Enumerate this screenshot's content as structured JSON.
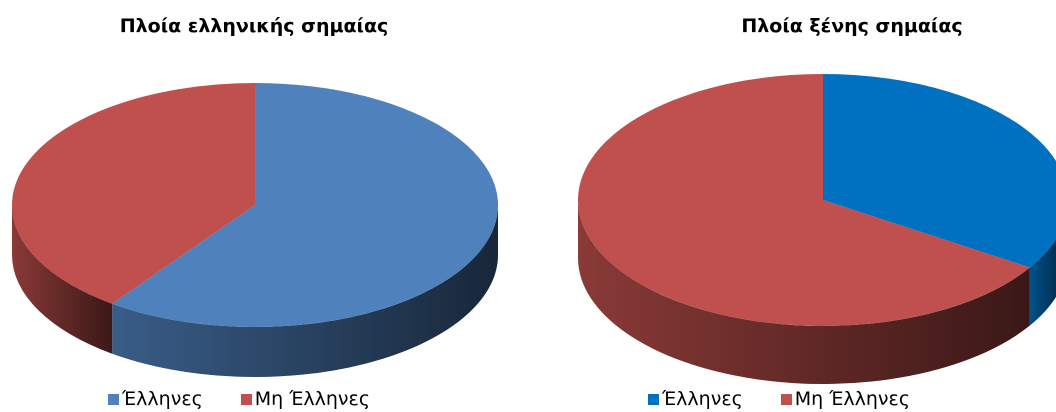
{
  "chart_data": [
    {
      "type": "pie",
      "title": "Πλοία ελληνικής σημαίας",
      "slices": [
        {
          "label": "Έλληνες",
          "value": 60,
          "color": "#4F81BD"
        },
        {
          "label": "Μη Έλληνες",
          "value": 40,
          "color": "#C0504D"
        }
      ],
      "legend_position": "bottom"
    },
    {
      "type": "pie",
      "title": "Πλοία ξένης σημαίας",
      "slices": [
        {
          "label": "Έλληνες",
          "value": 34,
          "color": "#0070C0"
        },
        {
          "label": "Μη Έλληνες",
          "value": 66,
          "color": "#C0504D"
        }
      ],
      "legend_position": "bottom"
    }
  ]
}
